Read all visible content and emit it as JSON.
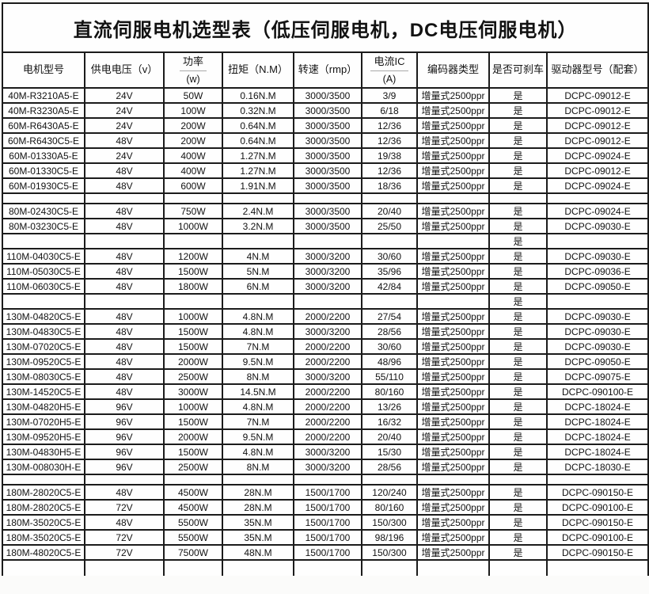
{
  "title": "直流伺服电机选型表（低压伺服电机，DC电压伺服电机）",
  "table": {
    "headers": [
      {
        "label": "电机型号"
      },
      {
        "label": "供电电压（v）"
      },
      {
        "label": "功率",
        "sub": "(w)"
      },
      {
        "label": "扭矩（N.M）"
      },
      {
        "label": "转速（rmp）"
      },
      {
        "label": "电流IC",
        "sub": "(A)"
      },
      {
        "label": "编码器类型"
      },
      {
        "label": "是否可刹车"
      },
      {
        "label": "驱动器型号（配套）"
      }
    ],
    "rows": [
      {
        "type": "data",
        "model": "40M-R3210A5-E",
        "voltage": "24V",
        "power": "50W",
        "torque": "0.16N.M",
        "speed": "3000/3500",
        "current": "3/9",
        "encoder": "增量式2500ppr",
        "brake": "是",
        "driver": "DCPC-09012-E"
      },
      {
        "type": "data",
        "model": "40M-R3230A5-E",
        "voltage": "24V",
        "power": "100W",
        "torque": "0.32N.M",
        "speed": "3000/3500",
        "current": "6/18",
        "encoder": "增量式2500ppr",
        "brake": "是",
        "driver": "DCPC-09012-E"
      },
      {
        "type": "data",
        "model": "60M-R6430A5-E",
        "voltage": "24V",
        "power": "200W",
        "torque": "0.64N.M",
        "speed": "3000/3500",
        "current": "12/36",
        "encoder": "增量式2500ppr",
        "brake": "是",
        "driver": "DCPC-09012-E"
      },
      {
        "type": "data",
        "model": "60M-R6430C5-E",
        "voltage": "48V",
        "power": "200W",
        "torque": "0.64N.M",
        "speed": "3000/3500",
        "current": "12/36",
        "encoder": "增量式2500ppr",
        "brake": "是",
        "driver": "DCPC-09012-E"
      },
      {
        "type": "data",
        "model": "60M-01330A5-E",
        "voltage": "24V",
        "power": "400W",
        "torque": "1.27N.M",
        "speed": "3000/3500",
        "current": "19/38",
        "encoder": "增量式2500ppr",
        "brake": "是",
        "driver": "DCPC-09024-E"
      },
      {
        "type": "data",
        "model": "60M-01330C5-E",
        "voltage": "48V",
        "power": "400W",
        "torque": "1.27N.M",
        "speed": "3000/3500",
        "current": "12/36",
        "encoder": "增量式2500ppr",
        "brake": "是",
        "driver": "DCPC-09012-E"
      },
      {
        "type": "data",
        "model": "60M-01930C5-E",
        "voltage": "48V",
        "power": "600W",
        "torque": "1.91N.M",
        "speed": "3000/3500",
        "current": "18/36",
        "encoder": "增量式2500ppr",
        "brake": "是",
        "driver": "DCPC-09024-E"
      },
      {
        "type": "spacer",
        "brake": ""
      },
      {
        "type": "data",
        "model": "80M-02430C5-E",
        "voltage": "48V",
        "power": "750W",
        "torque": "2.4N.M",
        "speed": "3000/3500",
        "current": "20/40",
        "encoder": "增量式2500ppr",
        "brake": "是",
        "driver": "DCPC-09024-E"
      },
      {
        "type": "data",
        "model": "80M-03230C5-E",
        "voltage": "48V",
        "power": "1000W",
        "torque": "3.2N.M",
        "speed": "3000/3500",
        "current": "25/50",
        "encoder": "增量式2500ppr",
        "brake": "是",
        "driver": "DCPC-09030-E"
      },
      {
        "type": "spacer",
        "brake": "是"
      },
      {
        "type": "data",
        "model": "110M-04030C5-E",
        "voltage": "48V",
        "power": "1200W",
        "torque": "4N.M",
        "speed": "3000/3200",
        "current": "30/60",
        "encoder": "增量式2500ppr",
        "brake": "是",
        "driver": "DCPC-09030-E"
      },
      {
        "type": "data",
        "model": "110M-05030C5-E",
        "voltage": "48V",
        "power": "1500W",
        "torque": "5N.M",
        "speed": "3000/3200",
        "current": "35/96",
        "encoder": "增量式2500ppr",
        "brake": "是",
        "driver": "DCPC-09036-E"
      },
      {
        "type": "data",
        "model": "110M-06030C5-E",
        "voltage": "48V",
        "power": "1800W",
        "torque": "6N.M",
        "speed": "3000/3200",
        "current": "42/84",
        "encoder": "增量式2500ppr",
        "brake": "是",
        "driver": "DCPC-09050-E"
      },
      {
        "type": "spacer",
        "brake": "是"
      },
      {
        "type": "data",
        "model": "130M-04820C5-E",
        "voltage": "48V",
        "power": "1000W",
        "torque": "4.8N.M",
        "speed": "2000/2200",
        "current": "27/54",
        "encoder": "增量式2500ppr",
        "brake": "是",
        "driver": "DCPC-09030-E"
      },
      {
        "type": "data",
        "model": "130M-04830C5-E",
        "voltage": "48V",
        "power": "1500W",
        "torque": "4.8N.M",
        "speed": "3000/3200",
        "current": "28/56",
        "encoder": "增量式2500ppr",
        "brake": "是",
        "driver": "DCPC-09030-E"
      },
      {
        "type": "data",
        "model": "130M-07020C5-E",
        "voltage": "48V",
        "power": "1500W",
        "torque": "7N.M",
        "speed": "2000/2200",
        "current": "30/60",
        "encoder": "增量式2500ppr",
        "brake": "是",
        "driver": "DCPC-09030-E"
      },
      {
        "type": "data",
        "model": "130M-09520C5-E",
        "voltage": "48V",
        "power": "2000W",
        "torque": "9.5N.M",
        "speed": "2000/2200",
        "current": "48/96",
        "encoder": "增量式2500ppr",
        "brake": "是",
        "driver": "DCPC-09050-E"
      },
      {
        "type": "data",
        "model": "130M-08030C5-E",
        "voltage": "48V",
        "power": "2500W",
        "torque": "8N.M",
        "speed": "3000/3200",
        "current": "55/110",
        "encoder": "增量式2500ppr",
        "brake": "是",
        "driver": "DCPC-09075-E"
      },
      {
        "type": "data",
        "model": "130M-14520C5-E",
        "voltage": "48V",
        "power": "3000W",
        "torque": "14.5N.M",
        "speed": "2000/2200",
        "current": "80/160",
        "encoder": "增量式2500ppr",
        "brake": "是",
        "driver": "DCPC-090100-E"
      },
      {
        "type": "data",
        "model": "130M-04820H5-E",
        "voltage": "96V",
        "power": "1000W",
        "torque": "4.8N.M",
        "speed": "2000/2200",
        "current": "13/26",
        "encoder": "增量式2500ppr",
        "brake": "是",
        "driver": "DCPC-18024-E"
      },
      {
        "type": "data",
        "model": "130M-07020H5-E",
        "voltage": "96V",
        "power": "1500W",
        "torque": "7N.M",
        "speed": "2000/2200",
        "current": "16/32",
        "encoder": "增量式2500ppr",
        "brake": "是",
        "driver": "DCPC-18024-E"
      },
      {
        "type": "data",
        "model": "130M-09520H5-E",
        "voltage": "96V",
        "power": "2000W",
        "torque": "9.5N.M",
        "speed": "2000/2200",
        "current": "20/40",
        "encoder": "增量式2500ppr",
        "brake": "是",
        "driver": "DCPC-18024-E"
      },
      {
        "type": "data",
        "model": "130M-04830H5-E",
        "voltage": "96V",
        "power": "1500W",
        "torque": "4.8N.M",
        "speed": "3000/3200",
        "current": "15/30",
        "encoder": "增量式2500ppr",
        "brake": "是",
        "driver": "DCPC-18024-E"
      },
      {
        "type": "data",
        "model": "130M-008030H-E",
        "voltage": "96V",
        "power": "2500W",
        "torque": "8N.M",
        "speed": "3000/3200",
        "current": "28/56",
        "encoder": "增量式2500ppr",
        "brake": "是",
        "driver": "DCPC-18030-E"
      },
      {
        "type": "spacer",
        "brake": ""
      },
      {
        "type": "data",
        "model": "180M-28020C5-E",
        "voltage": "48V",
        "power": "4500W",
        "torque": "28N.M",
        "speed": "1500/1700",
        "current": "120/240",
        "encoder": "增量式2500ppr",
        "brake": "是",
        "driver": "DCPC-090150-E"
      },
      {
        "type": "data",
        "model": "180M-28020C5-E",
        "voltage": "72V",
        "power": "4500W",
        "torque": "28N.M",
        "speed": "1500/1700",
        "current": "80/160",
        "encoder": "增量式2500ppr",
        "brake": "是",
        "driver": "DCPC-090100-E"
      },
      {
        "type": "data",
        "model": "180M-35020C5-E",
        "voltage": "48V",
        "power": "5500W",
        "torque": "35N.M",
        "speed": "1500/1700",
        "current": "150/300",
        "encoder": "增量式2500ppr",
        "brake": "是",
        "driver": "DCPC-090150-E"
      },
      {
        "type": "data",
        "model": "180M-35020C5-E",
        "voltage": "72V",
        "power": "5500W",
        "torque": "35N.M",
        "speed": "1500/1700",
        "current": "98/196",
        "encoder": "增量式2500ppr",
        "brake": "是",
        "driver": "DCPC-090100-E"
      },
      {
        "type": "data",
        "model": "180M-48020C5-E",
        "voltage": "72V",
        "power": "7500W",
        "torque": "48N.M",
        "speed": "1500/1700",
        "current": "150/300",
        "encoder": "增量式2500ppr",
        "brake": "是",
        "driver": "DCPC-090150-E"
      },
      {
        "type": "spacer-bottom",
        "brake": ""
      }
    ]
  }
}
